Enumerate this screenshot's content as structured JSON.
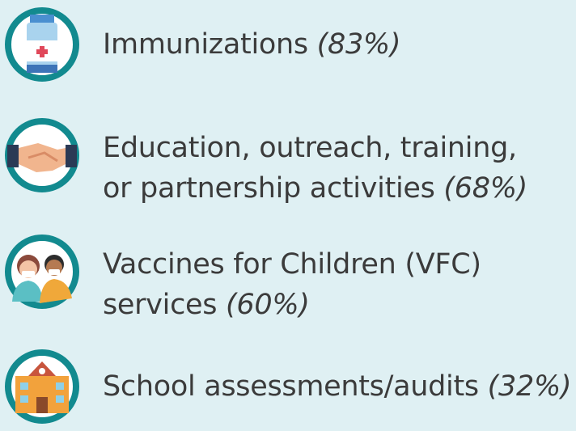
{
  "items": [
    {
      "lines": [
        "Immunizations"
      ],
      "percent": "(83%)"
    },
    {
      "lines": [
        "Education, outreach, training,",
        "or partnership activities"
      ],
      "percent": "(68%)"
    },
    {
      "lines": [
        "Vaccines for Children (VFC)",
        "services"
      ],
      "percent": "(60%)"
    },
    {
      "lines": [
        "School assessments/audits"
      ],
      "percent": "(32%)"
    }
  ]
}
